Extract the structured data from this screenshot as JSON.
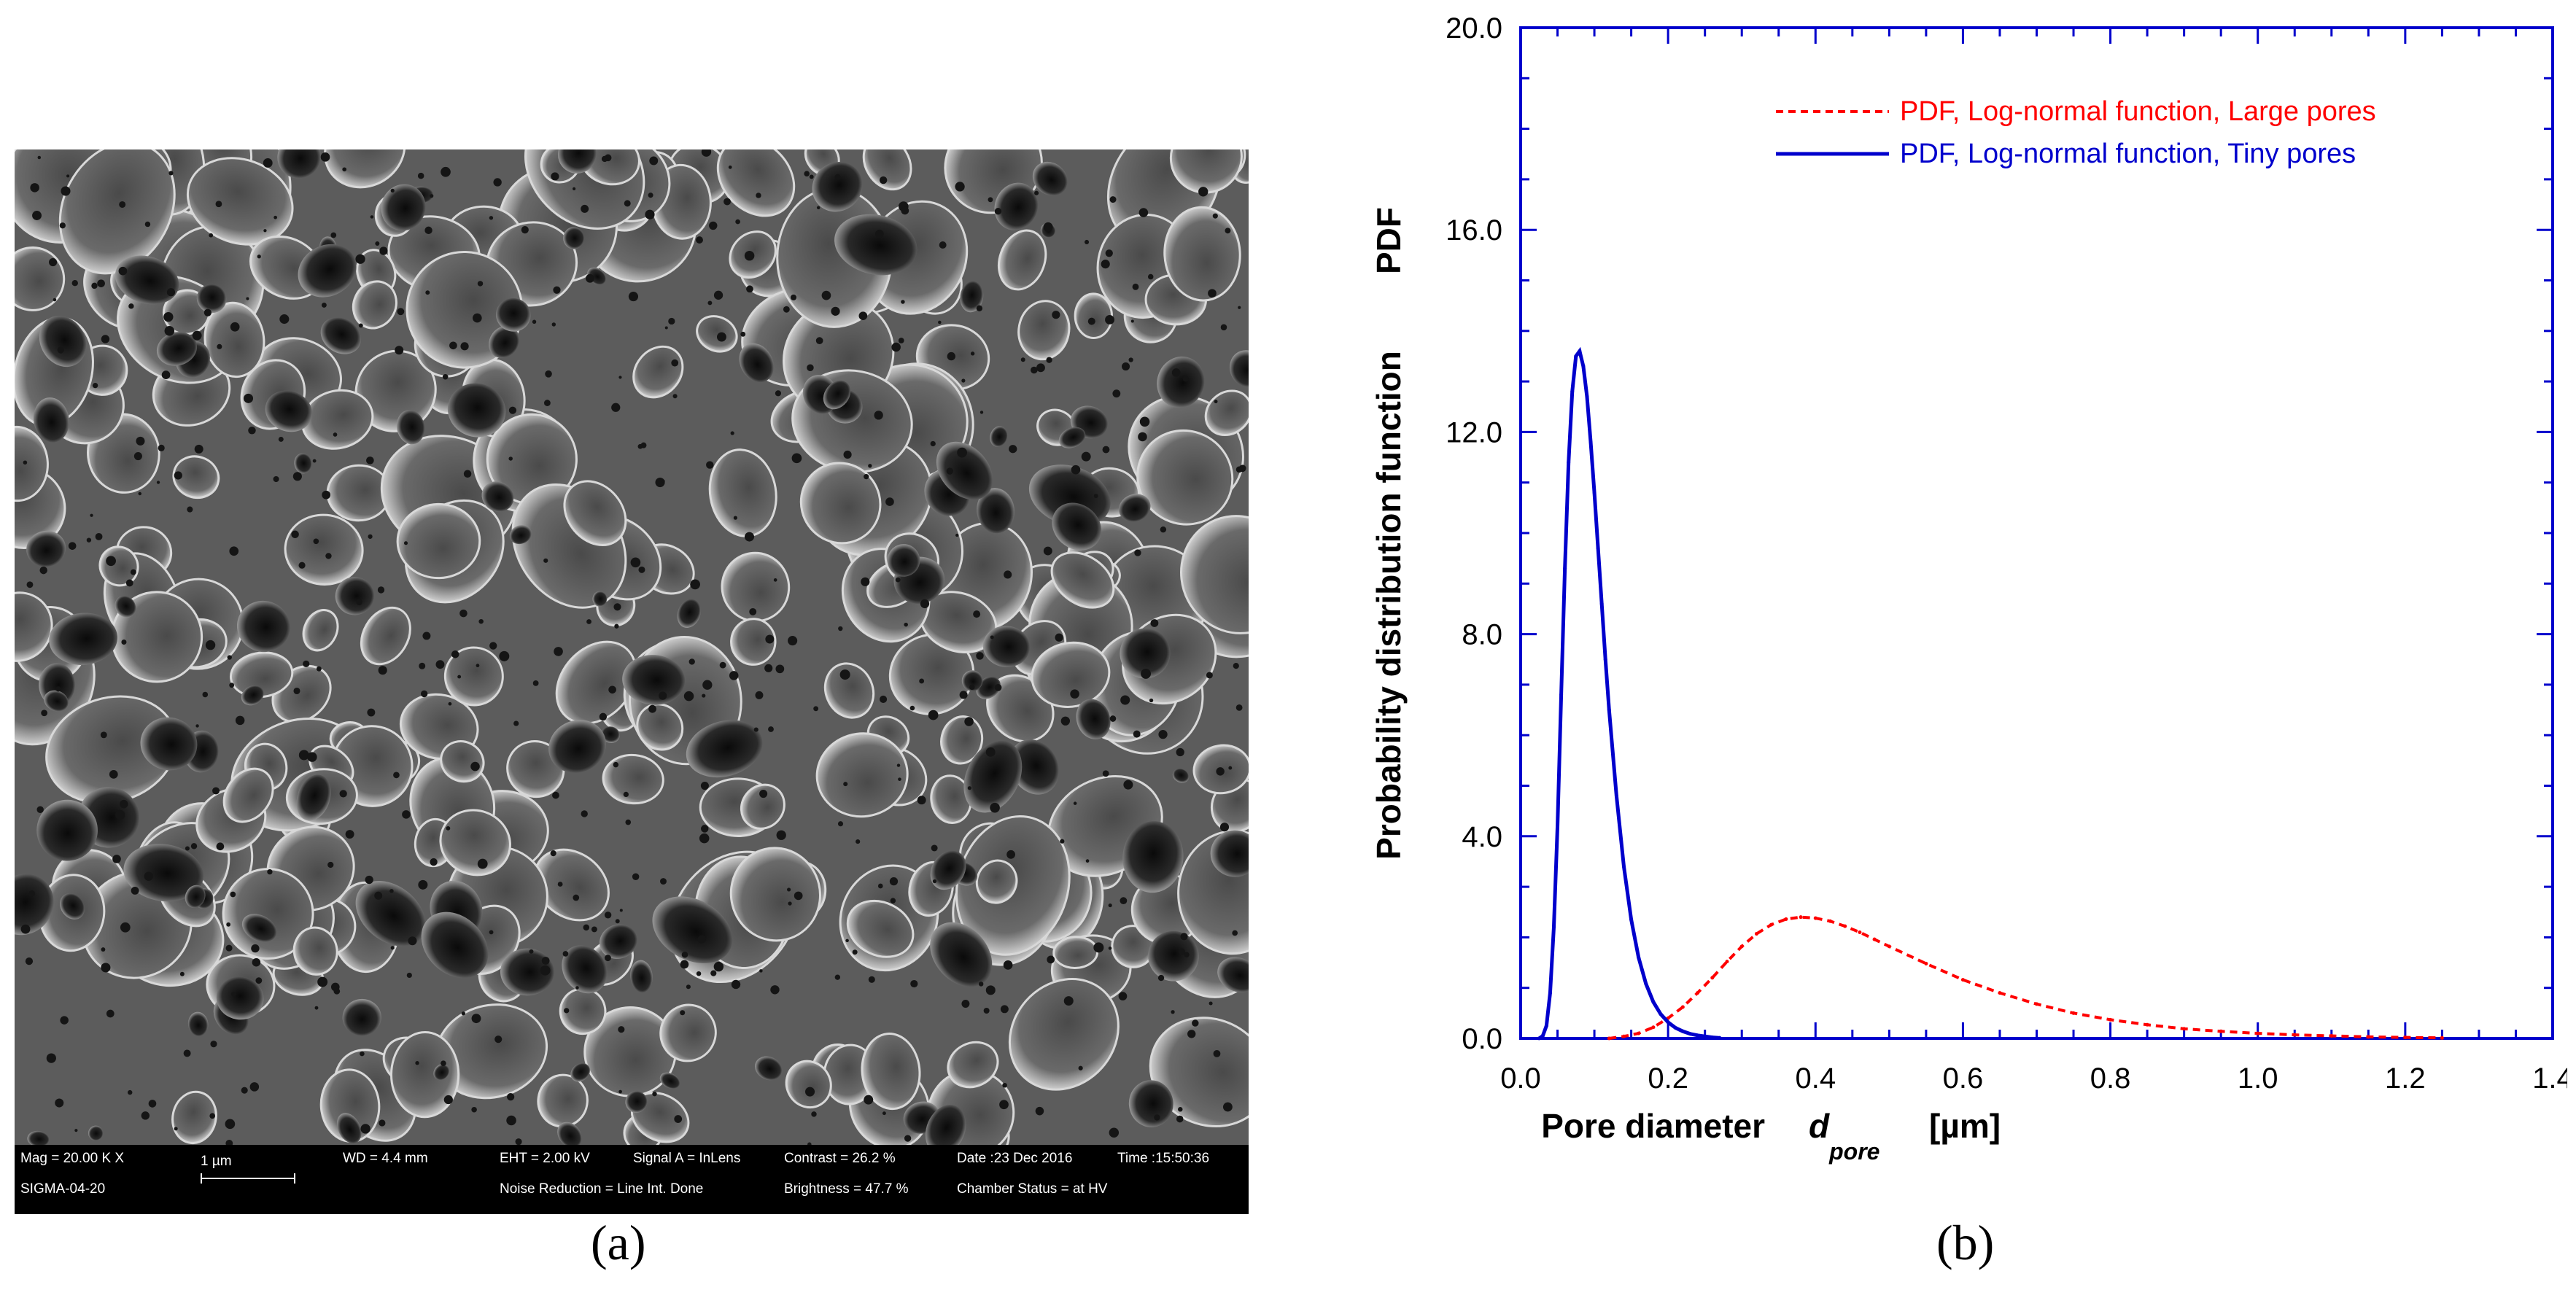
{
  "panels": {
    "a_label": "(a)",
    "b_label": "(b)"
  },
  "sem": {
    "mag": "Mag =  20.00 K X",
    "scale": "1 µm",
    "wd": "WD =  4.4 mm",
    "eht": "EHT =  2.00 kV",
    "signal": "Signal A = InLens",
    "contrast": "Contrast = 26.2 %",
    "date": "Date :23 Dec 2016",
    "time": "Time :15:50:36",
    "instrument": "SIGMA-04-20",
    "noise": "Noise Reduction = Line Int. Done",
    "brightness": "Brightness = 47.7 %",
    "chamber": "Chamber Status = at HV"
  },
  "chart_data": {
    "type": "line",
    "title": "",
    "xlabel_main": "Pore diameter",
    "xlabel_symbol": "d",
    "xlabel_subscript": "pore",
    "xlabel_unit": "[µm]",
    "ylabel_main": "Probability distribution function",
    "ylabel_short": "PDF",
    "xlim": [
      0.0,
      1.4
    ],
    "ylim": [
      0.0,
      20.0
    ],
    "xticks": [
      "0.0",
      "0.2",
      "0.4",
      "0.6",
      "0.8",
      "1.0",
      "1.2",
      "1.4"
    ],
    "yticks": [
      "0.0",
      "4.0",
      "8.0",
      "12.0",
      "16.0",
      "20.0"
    ],
    "grid": false,
    "legend_position": "top-right",
    "colors": {
      "large": "#ff0000",
      "tiny": "#0000cc",
      "axis": "#0000cc"
    },
    "series": [
      {
        "name": "PDF, Log-normal function, Large pores",
        "style": "dashed",
        "color": "#ff0000",
        "x": [
          0.12,
          0.14,
          0.16,
          0.18,
          0.2,
          0.22,
          0.24,
          0.26,
          0.28,
          0.3,
          0.32,
          0.34,
          0.36,
          0.38,
          0.4,
          0.42,
          0.44,
          0.46,
          0.48,
          0.5,
          0.55,
          0.6,
          0.65,
          0.7,
          0.75,
          0.8,
          0.85,
          0.9,
          0.95,
          1.0,
          1.05,
          1.1,
          1.15,
          1.2,
          1.25
        ],
        "y": [
          0.0,
          0.04,
          0.1,
          0.22,
          0.4,
          0.62,
          0.9,
          1.2,
          1.52,
          1.82,
          2.07,
          2.25,
          2.36,
          2.4,
          2.38,
          2.32,
          2.22,
          2.1,
          1.96,
          1.82,
          1.48,
          1.16,
          0.9,
          0.68,
          0.5,
          0.37,
          0.27,
          0.19,
          0.14,
          0.1,
          0.07,
          0.05,
          0.03,
          0.02,
          0.01
        ]
      },
      {
        "name": "PDF, Log-normal function, Tiny pores",
        "style": "solid",
        "color": "#0000cc",
        "x": [
          0.025,
          0.03,
          0.035,
          0.04,
          0.045,
          0.05,
          0.055,
          0.06,
          0.065,
          0.07,
          0.075,
          0.08,
          0.085,
          0.09,
          0.095,
          0.1,
          0.105,
          0.11,
          0.115,
          0.12,
          0.13,
          0.14,
          0.15,
          0.16,
          0.17,
          0.18,
          0.19,
          0.2,
          0.21,
          0.22,
          0.23,
          0.24,
          0.25,
          0.26,
          0.27
        ],
        "y": [
          0.0,
          0.05,
          0.25,
          0.9,
          2.2,
          4.2,
          6.8,
          9.3,
          11.4,
          12.8,
          13.5,
          13.6,
          13.3,
          12.7,
          11.8,
          10.8,
          9.7,
          8.6,
          7.5,
          6.5,
          4.8,
          3.4,
          2.35,
          1.6,
          1.08,
          0.72,
          0.48,
          0.32,
          0.21,
          0.14,
          0.09,
          0.06,
          0.04,
          0.02,
          0.01
        ]
      }
    ]
  }
}
